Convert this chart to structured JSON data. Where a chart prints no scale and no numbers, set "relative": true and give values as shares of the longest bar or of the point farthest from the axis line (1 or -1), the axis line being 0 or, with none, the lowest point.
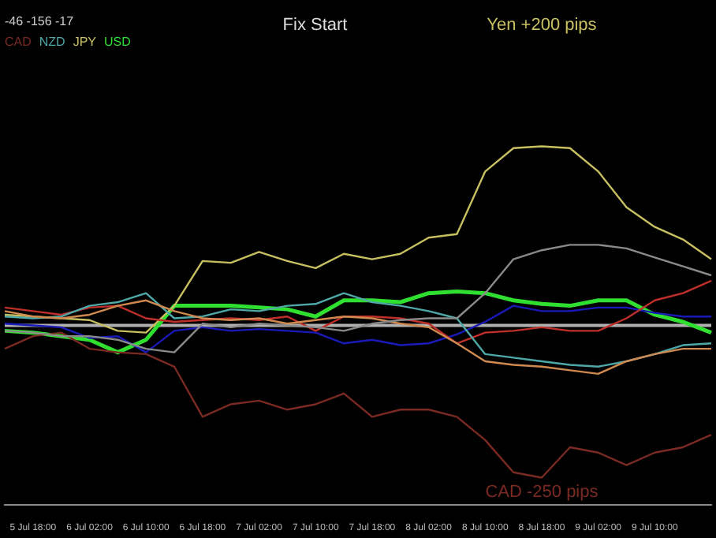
{
  "chart_data": {
    "type": "line",
    "relative": true,
    "legend": "top left",
    "grid": false,
    "annotations": [
      "-46 -156 -17",
      "Fix Start",
      "Yen +200 pips",
      "CAD -250 pips"
    ],
    "categories": [
      null,
      "5 Jul 18:00",
      null,
      "6 Jul 02:00",
      null,
      "6 Jul 10:00",
      null,
      "6 Jul 18:00",
      null,
      "7 Jul 02:00",
      null,
      "7 Jul 10:00",
      null,
      "7 Jul 18:00",
      null,
      "8 Jul 02:00",
      null,
      "8 Jul 10:00",
      null,
      "8 Jul 18:00",
      null,
      "9 Jul 02:00",
      null,
      "9 Jul 10:00",
      null,
      null
    ],
    "ref_lines": [
      {
        "axis": "y",
        "value": 0,
        "color": "#b0b0b0"
      }
    ],
    "series": [
      {
        "color": "#8a8a8a",
        "values": [
          -0.03,
          -0.04,
          -0.06,
          -0.06,
          -0.08,
          -0.13,
          -0.15,
          0.01,
          -0.01,
          0.01,
          0,
          -0.01,
          -0.03,
          0.01,
          0.03,
          0.04,
          0.04,
          0.18,
          0.37,
          0.42,
          0.45,
          0.45,
          0.43,
          0.38,
          0.33,
          0.28
        ]
      },
      {
        "name": "CAD",
        "color": "#7a2a22",
        "values": [
          -0.13,
          -0.06,
          -0.04,
          -0.13,
          -0.15,
          -0.16,
          -0.23,
          -0.51,
          -0.44,
          -0.42,
          -0.47,
          -0.44,
          -0.38,
          -0.51,
          -0.47,
          -0.47,
          -0.51,
          -0.64,
          -0.82,
          -0.85,
          -0.68,
          -0.71,
          -0.78,
          -0.71,
          -0.68,
          -0.61
        ]
      },
      {
        "color": "#d08a50",
        "values": [
          0.08,
          0.05,
          0.04,
          0.06,
          0.11,
          0.14,
          0.08,
          0.04,
          0.03,
          0.04,
          0.01,
          0.03,
          0.05,
          0.04,
          0.01,
          -0.01,
          -0.1,
          -0.2,
          -0.22,
          -0.23,
          -0.25,
          -0.27,
          -0.2,
          -0.16,
          -0.13,
          -0.13
        ]
      },
      {
        "name": "NZD",
        "color": "#4fa8a8",
        "values": [
          0.05,
          0.04,
          0.05,
          0.11,
          0.13,
          0.18,
          0.04,
          0.05,
          0.09,
          0.08,
          0.11,
          0.12,
          0.18,
          0.13,
          0.11,
          0.08,
          0.04,
          -0.16,
          -0.18,
          -0.2,
          -0.22,
          -0.23,
          -0.2,
          -0.16,
          -0.11,
          -0.1
        ]
      },
      {
        "color": "#c0302a",
        "values": [
          0.1,
          0.08,
          0.06,
          0.1,
          0.11,
          0.04,
          0.02,
          0.03,
          0.04,
          0.03,
          0.05,
          -0.03,
          0.05,
          0.05,
          0.04,
          0.01,
          -0.1,
          -0.04,
          -0.03,
          -0.01,
          -0.03,
          -0.03,
          0.04,
          0.14,
          0.18,
          0.25
        ]
      },
      {
        "color": "#1a1ab8",
        "values": [
          0.01,
          0,
          -0.01,
          -0.07,
          -0.06,
          -0.15,
          -0.03,
          -0.01,
          -0.03,
          -0.02,
          -0.03,
          -0.04,
          -0.1,
          -0.08,
          -0.11,
          -0.1,
          -0.05,
          0.02,
          0.11,
          0.08,
          0.08,
          0.1,
          0.1,
          0.07,
          0.05,
          0.05
        ]
      },
      {
        "name": "JPY",
        "color": "#c8c060",
        "values": [
          0.06,
          0.05,
          0.04,
          0.03,
          -0.03,
          -0.04,
          0.11,
          0.36,
          0.35,
          0.41,
          0.36,
          0.32,
          0.4,
          0.37,
          0.4,
          0.49,
          0.51,
          0.86,
          0.99,
          1.0,
          0.99,
          0.86,
          0.66,
          0.55,
          0.48,
          0.37
        ]
      },
      {
        "name": "USD",
        "color": "#30e030",
        "values": [
          -0.03,
          -0.04,
          -0.06,
          -0.08,
          -0.15,
          -0.08,
          0.11,
          0.11,
          0.11,
          0.1,
          0.09,
          0.05,
          0.14,
          0.14,
          0.13,
          0.18,
          0.19,
          0.18,
          0.14,
          0.12,
          0.11,
          0.14,
          0.14,
          0.06,
          0.02,
          -0.04
        ]
      }
    ]
  }
}
